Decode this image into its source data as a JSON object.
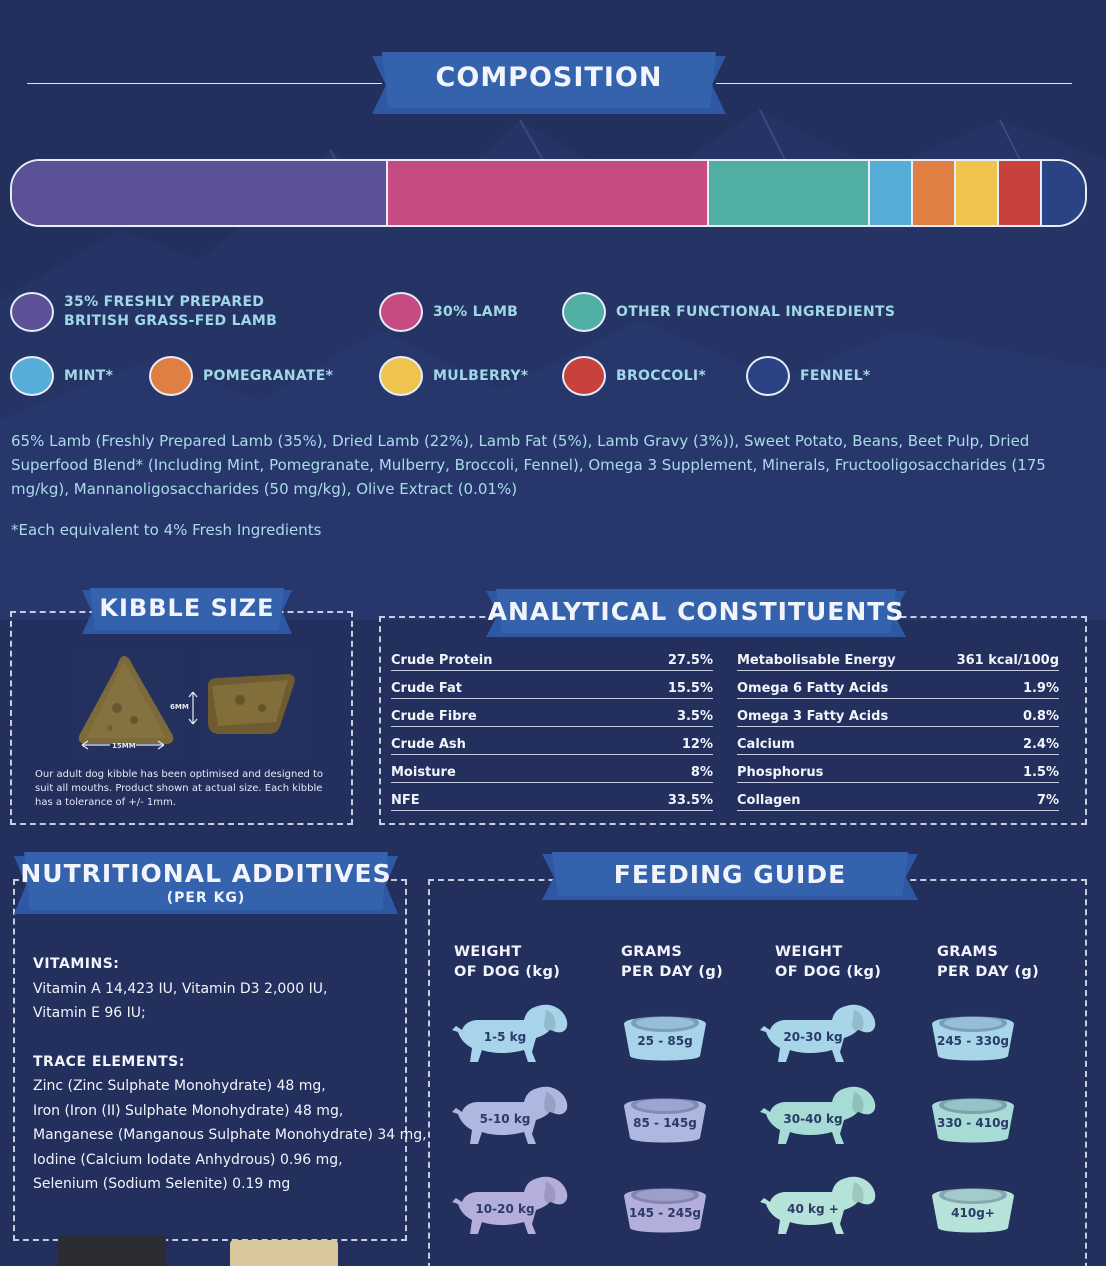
{
  "composition": {
    "title": "COMPOSITION",
    "segments": [
      {
        "name": "freshly-prepared-lamb",
        "color": "#5a5196",
        "fraction": 35
      },
      {
        "name": "lamb",
        "color": "#c64b82",
        "fraction": 30
      },
      {
        "name": "other-functional",
        "color": "#50aea2",
        "fraction": 15
      },
      {
        "name": "mint",
        "color": "#55add8",
        "fraction": 4
      },
      {
        "name": "pomegranate",
        "color": "#df7f44",
        "fraction": 4
      },
      {
        "name": "mulberry",
        "color": "#eec44e",
        "fraction": 4
      },
      {
        "name": "broccoli",
        "color": "#c9413c",
        "fraction": 4
      },
      {
        "name": "fennel",
        "color": "#2a4384",
        "fraction": 4
      }
    ],
    "legend": {
      "fresh_lamb_line1": "35% FRESHLY PREPARED",
      "fresh_lamb_line2": "BRITISH GRASS-FED LAMB",
      "lamb": "30% LAMB",
      "other": "OTHER FUNCTIONAL INGREDIENTS",
      "mint": "MINT*",
      "pomegranate": "POMEGRANATE*",
      "mulberry": "MULBERRY*",
      "broccoli": "BROCCOLI*",
      "fennel": "FENNEL*"
    },
    "ingredients": "65% Lamb (Freshly Prepared Lamb (35%), Dried Lamb (22%), Lamb Fat (5%), Lamb Gravy (3%)), Sweet Potato, Beans, Beet Pulp, Dried Superfood Blend* (Including Mint, Pomegranate, Mulberry, Broccoli, Fennel), Omega 3 Supplement, Minerals, Fructooligosaccharides (175 mg/kg), Mannanoligosaccharides (50 mg/kg), Olive Extract (0.01%)",
    "footnote": "*Each equivalent to 4% Fresh Ingredients"
  },
  "kibble": {
    "title": "KIBBLE SIZE",
    "width_label": "15MM",
    "height_label": "6MM",
    "caption": "Our adult dog kibble has been optimised and designed to suit all mouths. Product shown at actual size. Each kibble has a tolerance of +/- 1mm."
  },
  "analytical": {
    "title": "ANALYTICAL CONSTITUENTS",
    "left": [
      {
        "label": "Crude Protein",
        "value": "27.5%"
      },
      {
        "label": "Crude Fat",
        "value": "15.5%"
      },
      {
        "label": "Crude Fibre",
        "value": "3.5%"
      },
      {
        "label": "Crude Ash",
        "value": "12%"
      },
      {
        "label": "Moisture",
        "value": "8%"
      },
      {
        "label": "NFE",
        "value": "33.5%"
      }
    ],
    "right": [
      {
        "label": "Metabolisable Energy",
        "value": "361 kcal/100g"
      },
      {
        "label": "Omega 6 Fatty Acids",
        "value": "1.9%"
      },
      {
        "label": "Omega 3 Fatty Acids",
        "value": "0.8%"
      },
      {
        "label": "Calcium",
        "value": "2.4%"
      },
      {
        "label": "Phosphorus",
        "value": "1.5%"
      },
      {
        "label": "Collagen",
        "value": "7%"
      }
    ]
  },
  "additives": {
    "title": "NUTRITIONAL ADDITIVES",
    "subtitle": "(PER KG)",
    "vitamins_head": "VITAMINS:",
    "vitamins": [
      "Vitamin A 14,423 IU, Vitamin D3 2,000 IU,",
      "Vitamin E 96 IU;"
    ],
    "trace_head": "TRACE ELEMENTS:",
    "trace": [
      "Zinc (Zinc Sulphate Monohydrate) 48 mg,",
      "Iron (Iron (II) Sulphate Monohydrate) 48 mg,",
      "Manganese (Manganous Sulphate Monohydrate) 34 mg,",
      "Iodine (Calcium Iodate Anhydrous) 0.96 mg,",
      "Selenium (Sodium Selenite) 0.19 mg"
    ]
  },
  "feeding": {
    "title": "FEEDING GUIDE",
    "headers": {
      "weight_1": "WEIGHT",
      "weight_2": "OF DOG (kg)",
      "grams_1": "GRAMS",
      "grams_2": "PER DAY (g)"
    },
    "rows": [
      {
        "w1": "1-5 kg",
        "g1": "25 - 85g",
        "w2": "20-30 kg",
        "g2": "245 - 330g",
        "c1": "#a7d4ea",
        "c2": "#a7d6e8"
      },
      {
        "w1": "5-10 kg",
        "g1": "85 - 145g",
        "w2": "30-40 kg",
        "g2": "330 - 410g",
        "c1": "#aeb7e0",
        "c2": "#a6dbd6"
      },
      {
        "w1": "10-20 kg",
        "g1": "145 - 245g",
        "w2": "40 kg +",
        "g2": "410g+",
        "c1": "#b3aedb",
        "c2": "#b5e3da"
      }
    ]
  }
}
